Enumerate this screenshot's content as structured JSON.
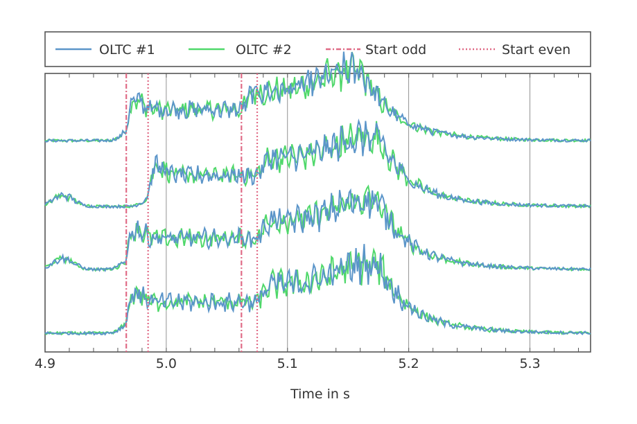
{
  "chart_data": {
    "type": "line",
    "title": "",
    "xlabel": "Time in s",
    "ylabel": "",
    "xlim": [
      4.9,
      5.35
    ],
    "x_ticks": [
      4.9,
      5.0,
      5.1,
      5.2,
      5.3
    ],
    "x_tick_labels": [
      "4.9",
      "5.0",
      "5.1",
      "5.2",
      "5.3"
    ],
    "grid": "vertical",
    "legend_position": "top",
    "colors": {
      "oltc1": "#5b95c9",
      "oltc2": "#4fd86a",
      "start_odd": "#e06b86",
      "start_even": "#e06b86"
    },
    "legend": [
      {
        "label": "OLTC #1",
        "style": "solid",
        "color": "#5b95c9"
      },
      {
        "label": "OLTC #2",
        "style": "solid",
        "color": "#4fd86a"
      },
      {
        "label": "Start odd",
        "style": "dashdot",
        "color": "#e06b86"
      },
      {
        "label": "Start even",
        "style": "dotted",
        "color": "#e06b86"
      }
    ],
    "start_odd_times": [
      4.967,
      5.062
    ],
    "start_even_times": [
      4.985,
      5.075
    ],
    "traces": [
      {
        "start_odd": 4.967,
        "start_even": 5.062
      },
      {
        "start_odd": 4.985,
        "start_even": 5.075
      },
      {
        "start_odd": 4.967,
        "start_even": 5.075
      },
      {
        "start_odd": 4.967,
        "start_even": 5.075
      }
    ]
  }
}
